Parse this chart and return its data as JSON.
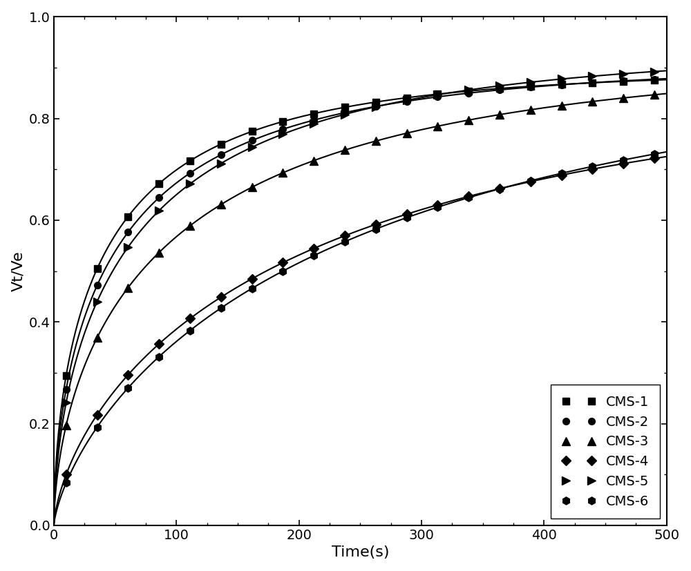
{
  "title": "",
  "xlabel": "Time(s)",
  "ylabel": "Vt/Ve",
  "xlim": [
    0,
    500
  ],
  "ylim": [
    0,
    1.0
  ],
  "xticks": [
    0,
    100,
    200,
    300,
    400,
    500
  ],
  "yticks": [
    0.0,
    0.2,
    0.4,
    0.6,
    0.8,
    1.0
  ],
  "series": [
    {
      "label": "CMS-1",
      "marker": "s",
      "color": "#000000",
      "marker_size": 7,
      "k": 0.045,
      "n": 0.72,
      "ve": 0.895
    },
    {
      "label": "CMS-2",
      "marker": "o",
      "color": "#000000",
      "marker_size": 7,
      "k": 0.04,
      "n": 0.72,
      "ve": 0.905
    },
    {
      "label": "CMS-3",
      "marker": "^",
      "color": "#000000",
      "marker_size": 8,
      "k": 0.03,
      "n": 0.72,
      "ve": 0.925
    },
    {
      "label": "CMS-4",
      "marker": "D",
      "color": "#000000",
      "marker_size": 7,
      "k": 0.012,
      "n": 0.78,
      "ve": 0.885
    },
    {
      "label": "CMS-5",
      "marker": ">",
      "color": "#000000",
      "marker_size": 8,
      "k": 0.035,
      "n": 0.72,
      "ve": 0.935
    },
    {
      "label": "CMS-6",
      "marker": "h",
      "color": "#000000",
      "marker_size": 8,
      "k": 0.01,
      "n": 0.8,
      "ve": 0.925
    }
  ],
  "legend_loc": "lower right",
  "line_width": 1.5,
  "background_color": "#ffffff",
  "font_size": 16,
  "tick_font_size": 14,
  "n_markers": 20
}
